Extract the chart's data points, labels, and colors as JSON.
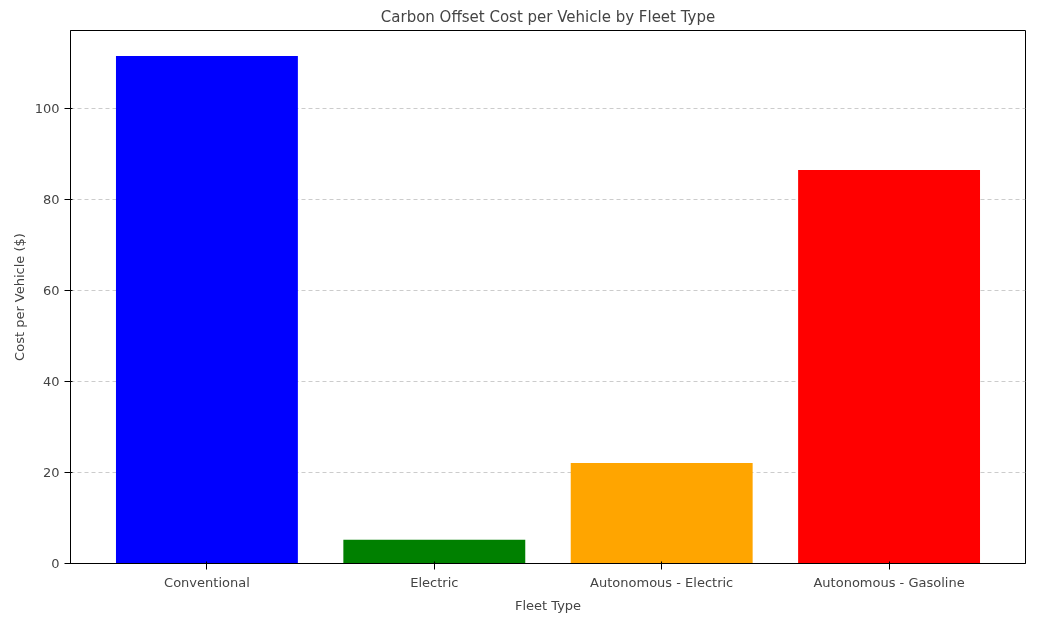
{
  "chart_data": {
    "type": "bar",
    "title": "Carbon Offset Cost per Vehicle by Fleet Type",
    "xlabel": "Fleet Type",
    "ylabel": "Cost per Vehicle ($)",
    "categories": [
      "Conventional",
      "Electric",
      "Autonomous - Electric",
      "Autonomous - Gasoline"
    ],
    "values": [
      111.6,
      5.2,
      22.1,
      86.5
    ],
    "colors": [
      "#0000ff",
      "#008000",
      "#ffa500",
      "#ff0000"
    ],
    "ylim": [
      0,
      117.2
    ],
    "yticks": [
      0,
      20,
      40,
      60,
      80,
      100
    ],
    "grid": "y"
  }
}
